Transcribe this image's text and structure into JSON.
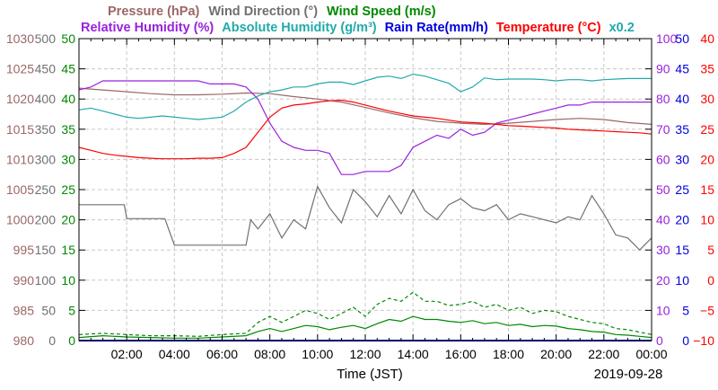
{
  "chart_data": {
    "type": "line",
    "date": "2019-09-28",
    "xlabel": "Time (JST)",
    "x_range_hours": [
      0,
      24
    ],
    "x_ticks": [
      "02:00",
      "04:00",
      "06:00",
      "08:00",
      "10:00",
      "12:00",
      "14:00",
      "16:00",
      "18:00",
      "20:00",
      "22:00",
      "00:00"
    ],
    "grid": true,
    "axes": [
      {
        "name": "Pressure (hPa)",
        "side": "left",
        "color": "#9c6666",
        "range": [
          980,
          1030
        ],
        "ticks": [
          "980",
          "985",
          "990",
          "995",
          "1000",
          "1005",
          "1010",
          "1015",
          "1020",
          "1025",
          "1030"
        ]
      },
      {
        "name": "Wind Direction (°)",
        "side": "left",
        "color": "#707070",
        "range": [
          0,
          500
        ],
        "ticks": [
          "0",
          "50",
          "100",
          "150",
          "200",
          "250",
          "300",
          "350",
          "400",
          "450",
          "500"
        ]
      },
      {
        "name": "Wind Speed (m/s)",
        "side": "left",
        "color": "#008800",
        "range": [
          0,
          50
        ],
        "ticks": [
          "0",
          "5",
          "10",
          "15",
          "20",
          "25",
          "30",
          "35",
          "40",
          "45",
          "50"
        ]
      },
      {
        "name": "Relative Humidity (%)",
        "side": "right",
        "color": "#9922dd",
        "range": [
          0,
          100
        ],
        "ticks": [
          "0",
          "10",
          "20",
          "30",
          "40",
          "50",
          "60",
          "70",
          "80",
          "90",
          "100"
        ]
      },
      {
        "name": "Absolute Humidity (g/m³) x0.2",
        "side": "right",
        "color": "#22aaaa",
        "range": [
          0,
          50
        ]
      },
      {
        "name": "Rain Rate(mm/h)",
        "side": "right",
        "color": "#0000dd",
        "range": [
          0,
          50
        ],
        "ticks": [
          "0",
          "5",
          "10",
          "15",
          "20",
          "25",
          "30",
          "35",
          "40",
          "45",
          "50"
        ]
      },
      {
        "name": "Temperature (°C)",
        "side": "right",
        "color": "#ff0000",
        "range": [
          -10,
          40
        ],
        "ticks": [
          "−10",
          "−5",
          "0",
          "5",
          "10",
          "15",
          "20",
          "25",
          "30",
          "35",
          "40"
        ]
      }
    ],
    "legend": {
      "line1": [
        {
          "label": "Pressure (hPa)",
          "color": "#9c6666"
        },
        {
          "label": "Wind Direction (°)",
          "color": "#707070"
        },
        {
          "label": "Wind Speed (m/s)",
          "color": "#008800"
        }
      ],
      "line2": [
        {
          "label": "Relative Humidity (%)",
          "color": "#9922dd"
        },
        {
          "label": "Absolute Humidity (g/m³)",
          "color": "#22aaaa"
        },
        {
          "label": "Rain Rate(mm/h)",
          "color": "#0000dd"
        },
        {
          "label": "Temperature (°C)",
          "color": "#ff0000"
        },
        {
          "label": "x0.2",
          "color": "#22aaaa"
        }
      ]
    },
    "series": [
      {
        "name": "Pressure",
        "axis": "Pressure (hPa)",
        "color": "#9c6666",
        "x": [
          0,
          1,
          2,
          3,
          4,
          5,
          6,
          7,
          8,
          9,
          10,
          11,
          12,
          13,
          14,
          15,
          16,
          17,
          18,
          19,
          20,
          21,
          22,
          23,
          24
        ],
        "values": [
          1021.8,
          1021.5,
          1021.2,
          1020.9,
          1020.7,
          1020.7,
          1020.8,
          1021.0,
          1020.9,
          1020.4,
          1020.0,
          1019.5,
          1018.6,
          1017.7,
          1016.9,
          1016.3,
          1016.0,
          1015.8,
          1016.0,
          1016.3,
          1016.6,
          1016.8,
          1016.6,
          1016.1,
          1015.8
        ]
      },
      {
        "name": "Wind Direction",
        "axis": "Wind Direction (°)",
        "color": "#707070",
        "x": [
          0,
          0.5,
          1,
          1.9,
          2,
          3,
          3.6,
          4,
          5,
          6,
          7,
          7.2,
          7.5,
          8,
          8.5,
          9,
          9.5,
          10,
          10.5,
          11,
          11.5,
          12,
          12.5,
          13,
          13.5,
          14,
          14.5,
          15,
          15.5,
          16,
          16.5,
          17,
          17.5,
          18,
          18.5,
          19,
          19.5,
          20,
          20.5,
          21,
          21.5,
          22,
          22.5,
          23,
          23.5,
          24
        ],
        "values": [
          225,
          225,
          225,
          225,
          202,
          202,
          202,
          158,
          158,
          158,
          158,
          200,
          185,
          210,
          170,
          200,
          185,
          255,
          220,
          195,
          250,
          230,
          205,
          240,
          210,
          250,
          215,
          200,
          225,
          235,
          220,
          215,
          225,
          200,
          210,
          205,
          200,
          195,
          205,
          200,
          240,
          210,
          175,
          170,
          150,
          170
        ]
      },
      {
        "name": "Wind Speed",
        "axis": "Wind Speed (m/s)",
        "color": "#008800",
        "x": [
          0,
          1,
          2,
          3,
          4,
          5,
          6,
          7,
          7.5,
          8,
          8.5,
          9,
          9.5,
          10,
          10.5,
          11,
          11.5,
          12,
          12.5,
          13,
          13.5,
          14,
          14.5,
          15,
          15.5,
          16,
          16.5,
          17,
          17.5,
          18,
          18.5,
          19,
          19.5,
          20,
          20.5,
          21,
          21.5,
          22,
          22.5,
          23,
          23.5,
          24
        ],
        "values": [
          0.5,
          0.8,
          0.6,
          0.5,
          0.4,
          0.4,
          0.6,
          0.8,
          1.5,
          2.0,
          1.5,
          2.0,
          2.5,
          2.3,
          1.8,
          2.2,
          2.5,
          2.0,
          2.8,
          3.5,
          3.2,
          4.0,
          3.5,
          3.5,
          3.2,
          3.0,
          3.3,
          2.8,
          3.0,
          2.5,
          2.7,
          2.3,
          2.5,
          2.4,
          2.0,
          1.8,
          1.5,
          1.4,
          1.0,
          0.9,
          0.7,
          0.5
        ]
      },
      {
        "name": "Relative Humidity",
        "axis": "Relative Humidity (%)",
        "color": "#9922dd",
        "x": [
          0,
          0.5,
          1,
          1.5,
          2,
          2.5,
          3,
          3.5,
          4,
          4.5,
          5,
          5.5,
          6,
          6.5,
          7,
          7.5,
          8,
          8.5,
          9,
          9.5,
          10,
          10.5,
          11,
          11.5,
          12,
          12.5,
          13,
          13.5,
          14,
          14.5,
          15,
          15.5,
          16,
          16.5,
          17,
          17.5,
          18,
          18.5,
          19,
          19.5,
          20,
          20.5,
          21,
          21.5,
          22,
          22.5,
          23,
          23.5,
          24
        ],
        "values": [
          83,
          84,
          86,
          86,
          86,
          86,
          86,
          86,
          86,
          86,
          86,
          85,
          85,
          85,
          84,
          80,
          72,
          66,
          64,
          63,
          63,
          62,
          55,
          55,
          56,
          56,
          56,
          58,
          64,
          66,
          68,
          67,
          70,
          68,
          69,
          72,
          73,
          74,
          75,
          76,
          77,
          78,
          78,
          79,
          79,
          79,
          79,
          79,
          79
        ]
      },
      {
        "name": "Absolute Humidity",
        "axis": "Absolute Humidity (g/m³) x0.2",
        "color": "#22aaaa",
        "x": [
          0,
          0.5,
          1,
          1.5,
          2,
          2.5,
          3,
          3.5,
          4,
          4.5,
          5,
          5.5,
          6,
          6.5,
          7,
          7.5,
          8,
          8.5,
          9,
          9.5,
          10,
          10.5,
          11,
          11.5,
          12,
          12.5,
          13,
          13.5,
          14,
          14.5,
          15,
          15.5,
          16,
          16.5,
          17,
          17.5,
          18,
          18.5,
          19,
          19.5,
          20,
          20.5,
          21,
          21.5,
          22,
          22.5,
          23,
          23.5,
          24
        ],
        "values": [
          38.2,
          38.5,
          38.0,
          37.5,
          37.0,
          36.8,
          37.0,
          37.2,
          37.0,
          36.8,
          36.6,
          36.8,
          37.0,
          38.0,
          39.5,
          40.5,
          41.2,
          41.5,
          42.0,
          42.0,
          42.5,
          42.8,
          42.8,
          42.4,
          43.0,
          43.6,
          43.8,
          43.4,
          44.1,
          43.8,
          43.2,
          42.6,
          41.2,
          42.0,
          43.5,
          43.2,
          43.3,
          43.3,
          43.3,
          43.2,
          43.0,
          43.2,
          43.2,
          43.0,
          43.2,
          43.3,
          43.4,
          43.4,
          43.4
        ]
      },
      {
        "name": "Rain Rate",
        "axis": "Rain Rate(mm/h)",
        "color": "#0000dd",
        "x": [
          0,
          24
        ],
        "values": [
          0,
          0
        ]
      },
      {
        "name": "Temperature",
        "axis": "Temperature (°C)",
        "color": "#ff0000",
        "x": [
          0,
          0.5,
          1,
          1.5,
          2,
          2.5,
          3,
          3.5,
          4,
          4.5,
          5,
          5.5,
          6,
          6.5,
          7,
          7.5,
          8,
          8.5,
          9,
          9.5,
          10,
          10.5,
          11,
          11.5,
          12,
          12.5,
          13,
          13.5,
          14,
          14.5,
          15,
          15.5,
          16,
          16.5,
          17,
          17.5,
          18,
          18.5,
          19,
          19.5,
          20,
          20.5,
          21,
          21.5,
          22,
          22.5,
          23,
          23.5,
          24
        ],
        "values": [
          22.0,
          21.5,
          21.0,
          20.7,
          20.5,
          20.3,
          20.2,
          20.1,
          20.1,
          20.1,
          20.2,
          20.2,
          20.3,
          21.0,
          22.0,
          24.5,
          27.0,
          28.5,
          29.0,
          29.2,
          29.5,
          29.7,
          29.8,
          29.5,
          29.0,
          28.5,
          28.0,
          27.6,
          27.2,
          27.0,
          26.8,
          26.5,
          26.2,
          26.1,
          26.0,
          25.8,
          25.6,
          25.5,
          25.4,
          25.3,
          25.2,
          25.0,
          24.9,
          24.8,
          24.7,
          24.6,
          24.5,
          24.4,
          24.2
        ]
      },
      {
        "name": "Wind Speed (max)",
        "axis": "Wind Speed (m/s)",
        "color": "#008800",
        "dashed": true,
        "x": [
          0,
          1,
          2,
          3,
          4,
          5,
          6,
          7,
          7.5,
          8,
          8.5,
          9,
          9.5,
          10,
          10.5,
          11,
          11.5,
          12,
          12.5,
          13,
          13.5,
          14,
          14.5,
          15,
          15.5,
          16,
          16.5,
          17,
          17.5,
          18,
          18.5,
          19,
          19.5,
          20,
          20.5,
          21,
          21.5,
          22,
          22.5,
          23,
          23.5,
          24
        ],
        "values": [
          1.0,
          1.2,
          1.0,
          0.8,
          0.8,
          0.7,
          1.0,
          1.2,
          3.0,
          4.0,
          3.0,
          4.0,
          5.0,
          4.5,
          3.5,
          4.5,
          5.5,
          4.0,
          6.0,
          7.0,
          6.5,
          8.0,
          6.5,
          6.5,
          5.8,
          6.0,
          6.5,
          5.5,
          6.0,
          5.0,
          5.5,
          4.5,
          5.0,
          4.8,
          4.0,
          3.5,
          3.0,
          2.8,
          2.0,
          1.8,
          1.4,
          1.0
        ]
      }
    ]
  }
}
